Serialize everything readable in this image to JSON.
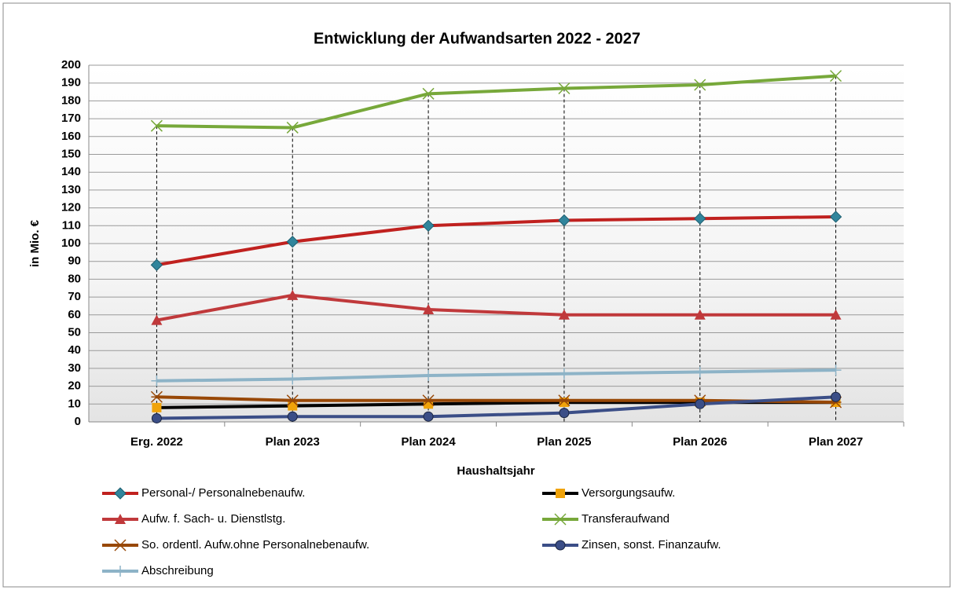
{
  "chart_data": {
    "type": "line",
    "title": "Entwicklung der Aufwandsarten 2022 - 2027",
    "x_label": "Haushaltsjahr",
    "y_label": "in Mio. €",
    "categories": [
      "Erg. 2022",
      "Plan 2023",
      "Plan 2024",
      "Plan 2025",
      "Plan 2026",
      "Plan 2027"
    ],
    "ylim": [
      0,
      200
    ],
    "yticks": [
      0,
      10,
      20,
      30,
      40,
      50,
      60,
      70,
      80,
      90,
      100,
      110,
      120,
      130,
      140,
      150,
      160,
      170,
      180,
      190,
      200
    ],
    "grid": true,
    "series": [
      {
        "name": "Personal-/ Personalnebenaufw.",
        "color": "#c0211f",
        "marker": "diamond",
        "marker_color": "#31859c",
        "values": [
          88,
          101,
          110,
          113,
          114,
          115
        ]
      },
      {
        "name": "Versorgungsaufw.",
        "color": "#000000",
        "marker": "square",
        "marker_color": "#f0a30a",
        "values": [
          8,
          9,
          10,
          11,
          11,
          11
        ]
      },
      {
        "name": "Aufw. f. Sach- u. Dienstlstg.",
        "color": "#c0393b",
        "marker": "triangle",
        "marker_color": "#c0393b",
        "values": [
          57,
          71,
          63,
          60,
          60,
          60
        ]
      },
      {
        "name": "Transferaufwand",
        "color": "#77a83a",
        "marker": "x",
        "marker_color": "#77a83a",
        "values": [
          166,
          165,
          184,
          187,
          189,
          194
        ]
      },
      {
        "name": "So. ordentl. Aufw.ohne Personalnebenaufw.",
        "color": "#984807",
        "marker": "star",
        "marker_color": "#984807",
        "values": [
          14,
          12,
          12,
          12,
          12,
          11
        ]
      },
      {
        "name": "Zinsen, sonst. Finanzaufw.",
        "color": "#3b4e87",
        "marker": "circle",
        "marker_color": "#3b4e87",
        "values": [
          2,
          3,
          3,
          5,
          10,
          14
        ]
      },
      {
        "name": "Abschreibung",
        "color": "#8db3c7",
        "marker": "plus",
        "marker_color": "#8db3c7",
        "values": [
          23,
          24,
          26,
          27,
          28,
          29
        ]
      }
    ]
  }
}
